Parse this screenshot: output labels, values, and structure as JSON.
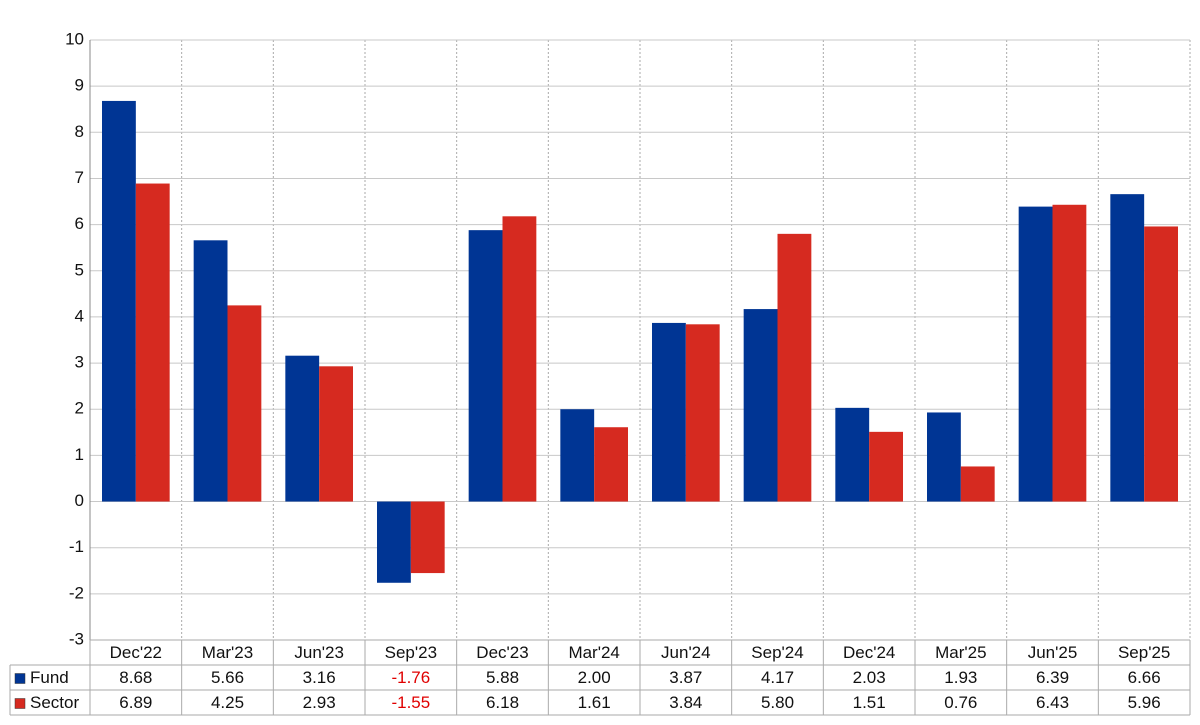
{
  "chart_data": {
    "type": "bar",
    "categories": [
      "Dec'22",
      "Mar'23",
      "Jun'23",
      "Sep'23",
      "Dec'23",
      "Mar'24",
      "Jun'24",
      "Sep'24",
      "Dec'24",
      "Mar'25",
      "Jun'25",
      "Sep'25"
    ],
    "series": [
      {
        "name": "Fund",
        "color": "#003594",
        "values": [
          8.68,
          5.66,
          3.16,
          -1.76,
          5.88,
          2.0,
          3.87,
          4.17,
          2.03,
          1.93,
          6.39,
          6.66
        ],
        "value_labels": [
          "8.68",
          "5.66",
          "3.16",
          "-1.76",
          "5.88",
          "2.00",
          "3.87",
          "4.17",
          "2.03",
          "1.93",
          "6.39",
          "6.66"
        ]
      },
      {
        "name": "Sector",
        "color": "#d62a20",
        "values": [
          6.89,
          4.25,
          2.93,
          -1.55,
          6.18,
          1.61,
          3.84,
          5.8,
          1.51,
          0.76,
          6.43,
          5.96
        ],
        "value_labels": [
          "6.89",
          "4.25",
          "2.93",
          "-1.55",
          "6.18",
          "1.61",
          "3.84",
          "5.80",
          "1.51",
          "0.76",
          "6.43",
          "5.96"
        ]
      }
    ],
    "ylim": [
      -3,
      10
    ],
    "yticks": [
      -3,
      -2,
      -1,
      0,
      1,
      2,
      3,
      4,
      5,
      6,
      7,
      8,
      9,
      10
    ],
    "grid": true,
    "negative_label_color": "#e00000"
  }
}
